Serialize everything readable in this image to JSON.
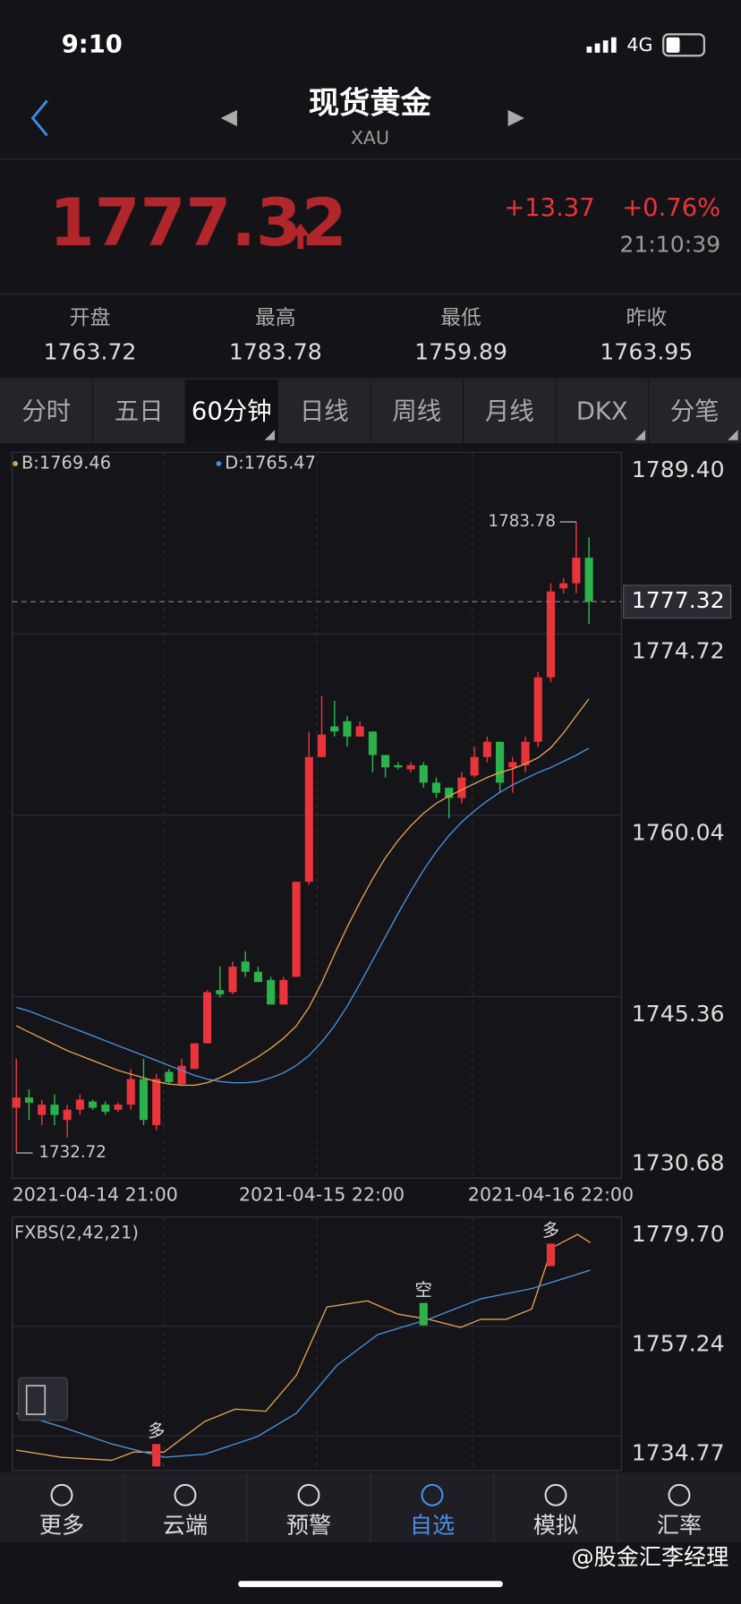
{
  "status": {
    "time": "9:10",
    "network": "4G"
  },
  "header": {
    "title": "现货黄金",
    "subtitle": "XAU"
  },
  "quote": {
    "price": "1777.32",
    "change": "+13.37",
    "change_pct": "+0.76%",
    "time": "21:10:39"
  },
  "stats": [
    {
      "label": "开盘",
      "value": "1763.72"
    },
    {
      "label": "最高",
      "value": "1783.78"
    },
    {
      "label": "最低",
      "value": "1759.89"
    },
    {
      "label": "昨收",
      "value": "1763.95"
    }
  ],
  "tabs": {
    "items": [
      "分时",
      "五日",
      "60分钟",
      "日线",
      "周线",
      "月线",
      "DKX",
      "分笔"
    ],
    "active": 2
  },
  "nav": {
    "items": [
      "更多",
      "云端",
      "预警",
      "自选",
      "模拟",
      "汇率"
    ],
    "active": 3
  },
  "watermark": "@股金汇李经理",
  "chart_data": [
    {
      "type": "candlestick",
      "up_color": "#e8343a",
      "down_color": "#2bb24c",
      "xlim": [
        -0.32,
        47.55
      ],
      "xticks": [
        {
          "value": 0,
          "label": "2021-04-14 21:00"
        },
        {
          "value": 24,
          "label": "2021-04-15 22:00"
        },
        {
          "value": 42,
          "label": "2021-04-16 22:00"
        }
      ],
      "ylim": [
        1730.68,
        1789.4
      ],
      "yticks": [
        {
          "value": 1789.4,
          "label": "1789.40"
        },
        1774.72,
        1760.04,
        1745.36,
        1730.68
      ],
      "current": 1777.32,
      "open": [
        1736.38,
        1737.21,
        1735.8,
        1736.63,
        1735.39,
        1736.22,
        1736.88,
        1736.63,
        1736.22,
        1736.63,
        1738.7,
        1734.97,
        1739.28,
        1738.28,
        1739.52,
        1741.59,
        1745.89,
        1745.73,
        1748.21,
        1747.38,
        1746.72,
        1744.73,
        1746.97,
        1754.66,
        1764.75,
        1767.23,
        1767.65,
        1766.41,
        1766.82,
        1764.92,
        1764.09,
        1763.76,
        1764.09,
        1762.68,
        1762.27,
        1761.44,
        1763.26,
        1764.75,
        1765.99,
        1763.92,
        1764.09,
        1765.99,
        1771.2,
        1778.4,
        1778.81,
        1780.88
      ],
      "high": [
        1740.35,
        1737.87,
        1737.04,
        1737.46,
        1736.63,
        1737.46,
        1737.04,
        1736.88,
        1736.79,
        1739.52,
        1740.35,
        1739.11,
        1739.52,
        1740.35,
        1741.59,
        1745.89,
        1747.8,
        1748.21,
        1749.04,
        1747.8,
        1746.97,
        1746.97,
        1754.66,
        1766.82,
        1769.71,
        1769.3,
        1768.06,
        1767.65,
        1766.82,
        1764.92,
        1764.34,
        1764.34,
        1764.34,
        1763.1,
        1762.27,
        1763.51,
        1765.58,
        1766.41,
        1765.99,
        1764.75,
        1766.41,
        1771.61,
        1778.81,
        1779.23,
        1783.78,
        1782.53
      ],
      "low": [
        1732.72,
        1735.39,
        1734.97,
        1734.97,
        1733.98,
        1735.8,
        1736.22,
        1735.8,
        1736.05,
        1736.22,
        1734.97,
        1734.56,
        1738.28,
        1738.28,
        1739.52,
        1741.59,
        1745.31,
        1745.56,
        1746.97,
        1746.55,
        1744.73,
        1744.73,
        1746.97,
        1754.41,
        1764.75,
        1766.41,
        1765.58,
        1766.41,
        1763.51,
        1763.1,
        1763.76,
        1763.51,
        1762.27,
        1761.44,
        1759.79,
        1761.0,
        1763.1,
        1764.34,
        1761.86,
        1761.86,
        1763.51,
        1765.58,
        1770.8,
        1777.99,
        1777.99,
        1775.5
      ],
      "close": [
        1737.21,
        1736.79,
        1736.63,
        1735.8,
        1736.22,
        1737.04,
        1736.38,
        1736.05,
        1736.63,
        1738.7,
        1735.39,
        1738.7,
        1738.45,
        1739.77,
        1741.59,
        1745.73,
        1745.56,
        1747.8,
        1747.38,
        1746.55,
        1744.73,
        1746.72,
        1754.66,
        1764.75,
        1766.57,
        1766.82,
        1766.41,
        1767.23,
        1764.92,
        1763.92,
        1763.92,
        1764.09,
        1762.68,
        1761.86,
        1761.44,
        1763.1,
        1764.75,
        1765.99,
        1762.68,
        1764.34,
        1765.99,
        1771.2,
        1778.15,
        1778.81,
        1780.88,
        1777.32
      ],
      "series": [
        {
          "name": "B:1769.46",
          "color": "#e0a050",
          "values": [
            1743.0,
            1742.5,
            1742.0,
            1741.5,
            1741.0,
            1740.6,
            1740.2,
            1739.8,
            1739.4,
            1739.1,
            1738.8,
            1738.5,
            1738.3,
            1738.2,
            1738.2,
            1738.4,
            1738.8,
            1739.3,
            1739.9,
            1740.5,
            1741.2,
            1742.0,
            1743.0,
            1744.5,
            1746.5,
            1748.8,
            1751.0,
            1753.0,
            1754.9,
            1756.6,
            1758.0,
            1759.2,
            1760.2,
            1761.0,
            1761.6,
            1762.1,
            1762.6,
            1763.1,
            1763.5,
            1763.8,
            1764.2,
            1764.7,
            1765.5,
            1766.7,
            1768.1,
            1769.46
          ]
        },
        {
          "name": "D:1765.47",
          "color": "#4a90d9",
          "values": [
            1744.5,
            1744.2,
            1743.8,
            1743.4,
            1743.0,
            1742.6,
            1742.2,
            1741.8,
            1741.4,
            1741.0,
            1740.6,
            1740.2,
            1739.8,
            1739.4,
            1739.0,
            1738.7,
            1738.5,
            1738.4,
            1738.4,
            1738.5,
            1738.8,
            1739.2,
            1739.8,
            1740.6,
            1741.7,
            1743.0,
            1744.6,
            1746.4,
            1748.3,
            1750.2,
            1752.1,
            1753.9,
            1755.6,
            1757.1,
            1758.4,
            1759.5,
            1760.4,
            1761.2,
            1761.9,
            1762.5,
            1763.0,
            1763.5,
            1763.9,
            1764.4,
            1764.9,
            1765.47
          ]
        }
      ],
      "annotations": [
        {
          "value": 1783.78,
          "x": 44,
          "side": "left"
        },
        {
          "value": 1732.72,
          "x": 0,
          "side": "right"
        }
      ]
    },
    {
      "type": "line",
      "title": "FXBS(2,42,21)",
      "xlim": [
        -0.32,
        47.55
      ],
      "ylim": [
        1727.63,
        1779.7
      ],
      "yticks": [
        {
          "value": 1779.7,
          "label": "1779.70"
        },
        1757.24,
        1734.77
      ],
      "series": [
        {
          "color": "#e0a050",
          "x": [
            0,
            3.5,
            7.5,
            9.2,
            11.6,
            14.8,
            17.2,
            19.6,
            22,
            24.4,
            27.6,
            30,
            32.4,
            34.9,
            36.5,
            38.5,
            40.5,
            42.1,
            44.1,
            45.1
          ],
          "values": [
            1731.83,
            1730.36,
            1729.73,
            1731.41,
            1731.41,
            1737.71,
            1740.23,
            1739.81,
            1747.16,
            1761.22,
            1762.48,
            1759.75,
            1758.7,
            1757.03,
            1758.7,
            1758.7,
            1760.8,
            1773.4,
            1776.13,
            1774.45
          ]
        },
        {
          "color": "#4a90d9",
          "x": [
            0,
            3.5,
            7.5,
            11.6,
            14.8,
            18.9,
            22,
            25.2,
            28.4,
            32.4,
            36.5,
            40.5,
            45.1
          ],
          "values": [
            1739.39,
            1736.66,
            1733.09,
            1730.36,
            1730.99,
            1734.56,
            1739.39,
            1749.26,
            1755.56,
            1758.7,
            1762.9,
            1765.0,
            1768.78
          ]
        }
      ],
      "signals": [
        {
          "x": 11,
          "y": 1729.73,
          "label": "多",
          "color": "#e8343a"
        },
        {
          "x": 32,
          "y": 1758.7,
          "label": "空",
          "color": "#2bb24c"
        },
        {
          "x": 42,
          "y": 1770.88,
          "label": "多",
          "color": "#e8343a"
        }
      ]
    }
  ]
}
